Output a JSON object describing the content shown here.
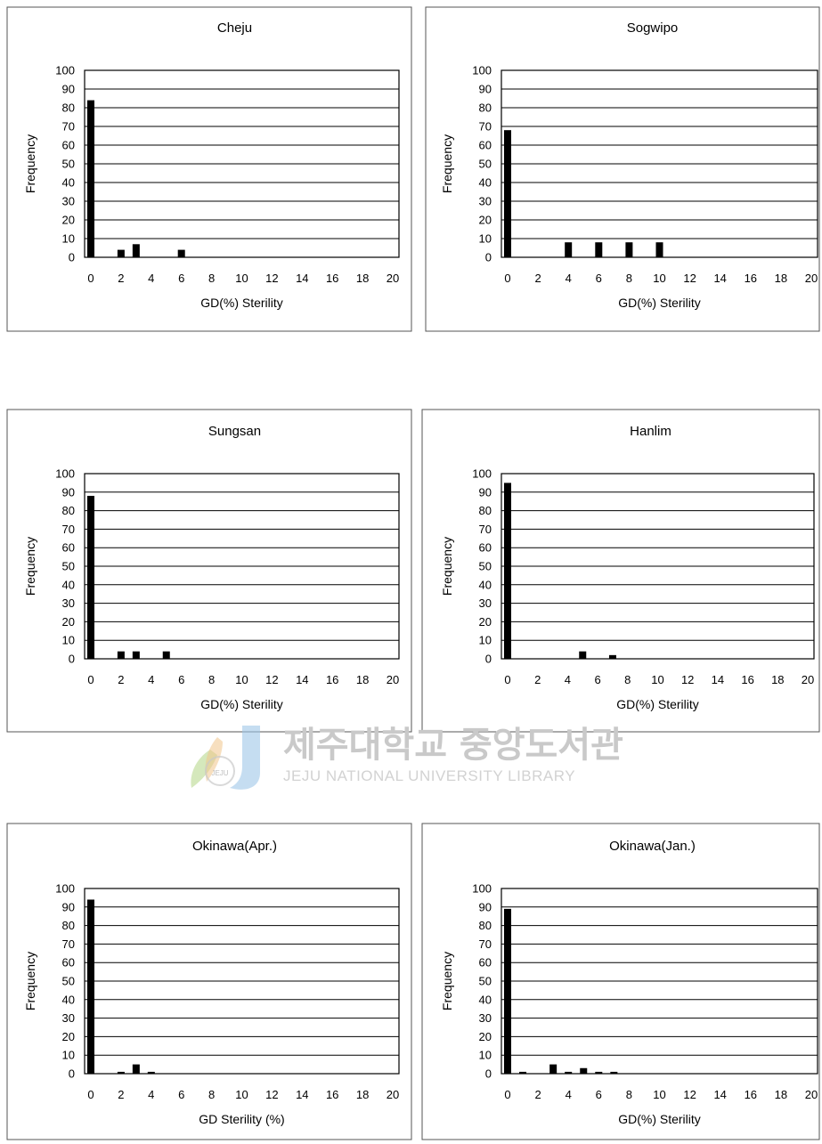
{
  "chart_data": [
    {
      "type": "bar",
      "title": "Cheju",
      "xlabel": "GD(%) Sterility",
      "ylabel": "Frequency",
      "ylim": [
        0,
        100
      ],
      "yticks": [
        0,
        10,
        20,
        30,
        40,
        50,
        60,
        70,
        80,
        90,
        100
      ],
      "xlim": [
        0,
        20
      ],
      "xticks": [
        0,
        2,
        4,
        6,
        8,
        10,
        12,
        14,
        16,
        18,
        20
      ],
      "grid": true,
      "points": [
        {
          "x": 0,
          "y": 84
        },
        {
          "x": 2,
          "y": 4
        },
        {
          "x": 3,
          "y": 7
        },
        {
          "x": 6,
          "y": 4
        }
      ]
    },
    {
      "type": "bar",
      "title": "Sogwipo",
      "xlabel": "GD(%) Sterility",
      "ylabel": "Frequency",
      "ylim": [
        0,
        100
      ],
      "yticks": [
        0,
        10,
        20,
        30,
        40,
        50,
        60,
        70,
        80,
        90,
        100
      ],
      "xlim": [
        0,
        20
      ],
      "xticks": [
        0,
        2,
        4,
        6,
        8,
        10,
        12,
        14,
        16,
        18,
        20
      ],
      "grid": true,
      "points": [
        {
          "x": 0,
          "y": 68
        },
        {
          "x": 4,
          "y": 8
        },
        {
          "x": 6,
          "y": 8
        },
        {
          "x": 8,
          "y": 8
        },
        {
          "x": 10,
          "y": 8
        }
      ]
    },
    {
      "type": "bar",
      "title": "Sungsan",
      "xlabel": "GD(%) Sterility",
      "ylabel": "Frequency",
      "ylim": [
        0,
        100
      ],
      "yticks": [
        0,
        10,
        20,
        30,
        40,
        50,
        60,
        70,
        80,
        90,
        100
      ],
      "xlim": [
        0,
        20
      ],
      "xticks": [
        0,
        2,
        4,
        6,
        8,
        10,
        12,
        14,
        16,
        18,
        20
      ],
      "grid": true,
      "points": [
        {
          "x": 0,
          "y": 88
        },
        {
          "x": 2,
          "y": 4
        },
        {
          "x": 3,
          "y": 4
        },
        {
          "x": 5,
          "y": 4
        }
      ]
    },
    {
      "type": "bar",
      "title": "Hanlim",
      "xlabel": "GD(%) Sterility",
      "ylabel": "Frequency",
      "ylim": [
        0,
        100
      ],
      "yticks": [
        0,
        10,
        20,
        30,
        40,
        50,
        60,
        70,
        80,
        90,
        100
      ],
      "xlim": [
        0,
        20
      ],
      "xticks": [
        0,
        2,
        4,
        6,
        8,
        10,
        12,
        14,
        16,
        18,
        20
      ],
      "grid": true,
      "points": [
        {
          "x": 0,
          "y": 95
        },
        {
          "x": 5,
          "y": 4
        },
        {
          "x": 7,
          "y": 2
        }
      ]
    },
    {
      "type": "bar",
      "title": "Okinawa(Apr.)",
      "xlabel": "GD Sterility (%)",
      "ylabel": "Frequency",
      "ylim": [
        0,
        100
      ],
      "yticks": [
        0,
        10,
        20,
        30,
        40,
        50,
        60,
        70,
        80,
        90,
        100
      ],
      "xlim": [
        0,
        20
      ],
      "xticks": [
        0,
        2,
        4,
        6,
        8,
        10,
        12,
        14,
        16,
        18,
        20
      ],
      "grid": true,
      "points": [
        {
          "x": 0,
          "y": 94
        },
        {
          "x": 2,
          "y": 1
        },
        {
          "x": 3,
          "y": 5
        },
        {
          "x": 4,
          "y": 1
        }
      ]
    },
    {
      "type": "bar",
      "title": "Okinawa(Jan.)",
      "xlabel": "GD(%) Sterility",
      "ylabel": "Frequency",
      "ylim": [
        0,
        100
      ],
      "yticks": [
        0,
        10,
        20,
        30,
        40,
        50,
        60,
        70,
        80,
        90,
        100
      ],
      "xlim": [
        0,
        20
      ],
      "xticks": [
        0,
        2,
        4,
        6,
        8,
        10,
        12,
        14,
        16,
        18,
        20
      ],
      "grid": true,
      "points": [
        {
          "x": 0,
          "y": 89
        },
        {
          "x": 1,
          "y": 1
        },
        {
          "x": 3,
          "y": 5
        },
        {
          "x": 4,
          "y": 1
        },
        {
          "x": 5,
          "y": 3
        },
        {
          "x": 6,
          "y": 1
        },
        {
          "x": 7,
          "y": 1
        }
      ]
    }
  ],
  "watermark": {
    "korean": "제주대학교 중앙도서관",
    "english": "JEJU NATIONAL UNIVERSITY LIBRARY",
    "logo_text": "JEJU",
    "colors": {
      "korean": "#c9c9c9",
      "english": "#d2d2d2",
      "logo_blue": "#9ec7e8",
      "logo_green": "#b9d98f"
    }
  }
}
